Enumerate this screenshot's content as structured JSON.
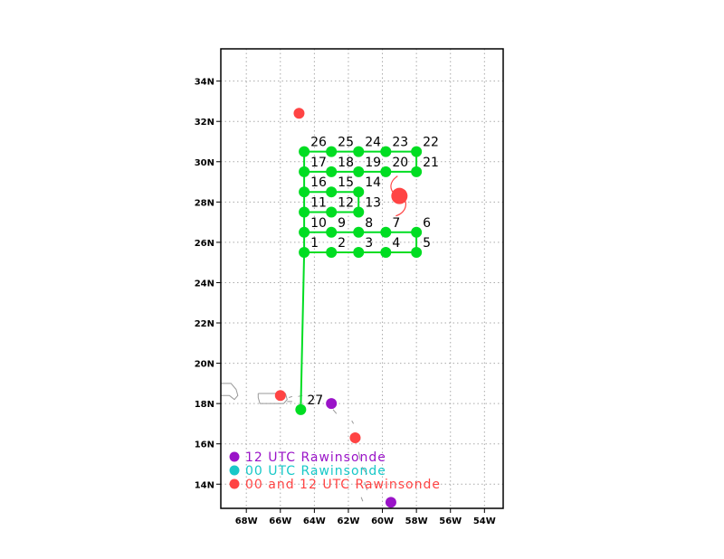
{
  "axes": {
    "lon_ticks": [
      {
        "value": -68,
        "label": "68W"
      },
      {
        "value": -66,
        "label": "66W"
      },
      {
        "value": -64,
        "label": "64W"
      },
      {
        "value": -62,
        "label": "62W"
      },
      {
        "value": -60,
        "label": "60W"
      },
      {
        "value": -58,
        "label": "58W"
      },
      {
        "value": -56,
        "label": "56W"
      },
      {
        "value": -54,
        "label": "54W"
      }
    ],
    "lat_ticks": [
      {
        "value": 14,
        "label": "14N"
      },
      {
        "value": 16,
        "label": "16N"
      },
      {
        "value": 18,
        "label": "18N"
      },
      {
        "value": 20,
        "label": "20N"
      },
      {
        "value": 22,
        "label": "22N"
      },
      {
        "value": 24,
        "label": "24N"
      },
      {
        "value": 26,
        "label": "26N"
      },
      {
        "value": 28,
        "label": "28N"
      },
      {
        "value": 30,
        "label": "30N"
      },
      {
        "value": 32,
        "label": "32N"
      },
      {
        "value": 34,
        "label": "34N"
      }
    ],
    "lon_range": [
      -69.5,
      -52.9
    ],
    "lat_range": [
      12.8,
      35.6
    ],
    "grid": true
  },
  "colors": {
    "flight_track": "#00dd22",
    "storm": "#ff4444",
    "utc12": "#9a14c8",
    "utc00": "#18c8c8",
    "utc00_12": "#ff4444",
    "coast": "#999999"
  },
  "waypoints": [
    {
      "id": "1",
      "lon": -64.6,
      "lat": 25.5
    },
    {
      "id": "2",
      "lon": -63.0,
      "lat": 25.5
    },
    {
      "id": "3",
      "lon": -61.4,
      "lat": 25.5
    },
    {
      "id": "4",
      "lon": -59.8,
      "lat": 25.5
    },
    {
      "id": "5",
      "lon": -58.0,
      "lat": 25.5
    },
    {
      "id": "6",
      "lon": -58.0,
      "lat": 26.5
    },
    {
      "id": "7",
      "lon": -59.8,
      "lat": 26.5
    },
    {
      "id": "8",
      "lon": -61.4,
      "lat": 26.5
    },
    {
      "id": "9",
      "lon": -63.0,
      "lat": 26.5
    },
    {
      "id": "10",
      "lon": -64.6,
      "lat": 26.5
    },
    {
      "id": "11",
      "lon": -64.6,
      "lat": 27.5
    },
    {
      "id": "12",
      "lon": -63.0,
      "lat": 27.5
    },
    {
      "id": "13",
      "lon": -61.4,
      "lat": 27.5
    },
    {
      "id": "14",
      "lon": -61.4,
      "lat": 28.5
    },
    {
      "id": "15",
      "lon": -63.0,
      "lat": 28.5
    },
    {
      "id": "16",
      "lon": -64.6,
      "lat": 28.5
    },
    {
      "id": "17",
      "lon": -64.6,
      "lat": 29.5
    },
    {
      "id": "18",
      "lon": -63.0,
      "lat": 29.5
    },
    {
      "id": "19",
      "lon": -61.4,
      "lat": 29.5
    },
    {
      "id": "20",
      "lon": -59.8,
      "lat": 29.5
    },
    {
      "id": "21",
      "lon": -58.0,
      "lat": 29.5
    },
    {
      "id": "22",
      "lon": -58.0,
      "lat": 30.5
    },
    {
      "id": "23",
      "lon": -59.8,
      "lat": 30.5
    },
    {
      "id": "24",
      "lon": -61.4,
      "lat": 30.5
    },
    {
      "id": "25",
      "lon": -63.0,
      "lat": 30.5
    },
    {
      "id": "26",
      "lon": -64.6,
      "lat": 30.5
    },
    {
      "id": "27",
      "lon": -64.8,
      "lat": 17.7
    }
  ],
  "track_order": [
    "27",
    "1",
    "2",
    "3",
    "4",
    "5",
    "6",
    "7",
    "8",
    "9",
    "10",
    "11",
    "12",
    "13",
    "14",
    "15",
    "16",
    "17",
    "18",
    "19",
    "20",
    "21",
    "22",
    "23",
    "24",
    "25",
    "26",
    "1"
  ],
  "storm": {
    "lon": -59.0,
    "lat": 28.3
  },
  "rawinsondes": [
    {
      "type": "00_12",
      "lon": -64.9,
      "lat": 32.4
    },
    {
      "type": "00_12",
      "lon": -66.0,
      "lat": 18.4
    },
    {
      "type": "12",
      "lon": -63.0,
      "lat": 18.0
    },
    {
      "type": "00_12",
      "lon": -61.6,
      "lat": 16.3
    },
    {
      "type": "12",
      "lon": -59.5,
      "lat": 13.1
    }
  ],
  "legend": [
    {
      "type": "12",
      "label": "12 UTC Rawinsonde"
    },
    {
      "type": "00",
      "label": "00 UTC Rawinsonde"
    },
    {
      "type": "00_12",
      "label": "00 and 12 UTC Rawinsonde"
    }
  ]
}
